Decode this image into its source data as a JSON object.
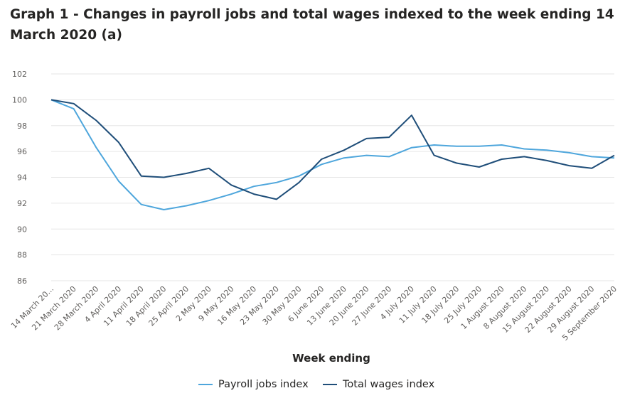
{
  "chart_data": {
    "type": "line",
    "title": "Graph 1 - Changes in payroll jobs and total wages indexed to the week ending 14 March 2020 (a)",
    "xlabel": "Week ending",
    "ylabel": "",
    "ylim": [
      86,
      102
    ],
    "yticks": [
      86,
      88,
      90,
      92,
      94,
      96,
      98,
      100,
      102
    ],
    "grid": true,
    "legend_position": "bottom",
    "categories": [
      "14 March 20...",
      "21 March 2020",
      "28 March 2020",
      "4 April 2020",
      "11 April 2020",
      "18 April 2020",
      "25 April 2020",
      "2 May 2020",
      "9 May 2020",
      "16 May 2020",
      "23 May 2020",
      "30 May 2020",
      "6 June 2020",
      "13 June 2020",
      "20 June 2020",
      "27 June 2020",
      "4 July 2020",
      "11 July 2020",
      "18 July 2020",
      "25 July 2020",
      "1 August 2020",
      "8 August 2020",
      "15 August 2020",
      "22 August 2020",
      "29 August 2020",
      "5 September 2020"
    ],
    "series": [
      {
        "name": "Payroll jobs index",
        "color": "#4ea6dc",
        "values": [
          100.0,
          99.3,
          96.3,
          93.7,
          91.9,
          91.5,
          91.8,
          92.2,
          92.7,
          93.3,
          93.6,
          94.1,
          95.0,
          95.5,
          95.7,
          95.6,
          96.3,
          96.5,
          96.4,
          96.4,
          96.5,
          96.2,
          96.1,
          95.9,
          95.6,
          95.5
        ]
      },
      {
        "name": "Total wages index",
        "color": "#1f4e79",
        "values": [
          100.0,
          99.7,
          98.4,
          96.7,
          94.1,
          94.0,
          94.3,
          94.7,
          93.4,
          92.7,
          92.3,
          93.6,
          95.4,
          96.1,
          97.0,
          97.1,
          98.8,
          95.7,
          95.1,
          94.8,
          95.4,
          95.6,
          95.3,
          94.9,
          94.7,
          95.7
        ]
      }
    ]
  }
}
